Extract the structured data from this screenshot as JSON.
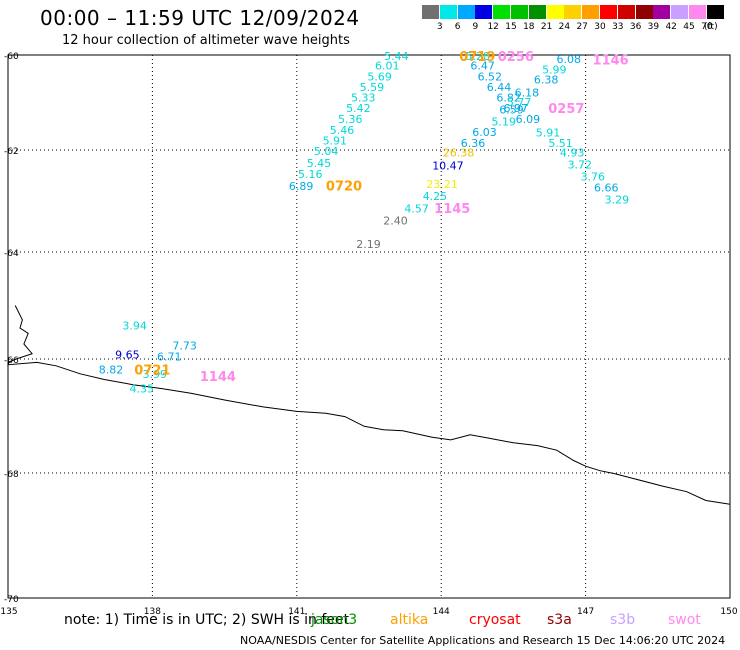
{
  "header": {
    "title": "00:00 – 11:59 UTC 12/09/2024",
    "subtitle": "12 hour collection of altimeter wave heights"
  },
  "legend": {
    "unit": "(ft)",
    "items": [
      {
        "label": "3",
        "color": "#707070"
      },
      {
        "label": "6",
        "color": "#00e8e8"
      },
      {
        "label": "9",
        "color": "#00a8ff"
      },
      {
        "label": "12",
        "color": "#0000e0"
      },
      {
        "label": "15",
        "color": "#00e000"
      },
      {
        "label": "18",
        "color": "#00c000"
      },
      {
        "label": "21",
        "color": "#009000"
      },
      {
        "label": "24",
        "color": "#ffff00"
      },
      {
        "label": "27",
        "color": "#ffd000"
      },
      {
        "label": "30",
        "color": "#ffa000"
      },
      {
        "label": "33",
        "color": "#ff0000"
      },
      {
        "label": "36",
        "color": "#d00000"
      },
      {
        "label": "39",
        "color": "#900000"
      },
      {
        "label": "42",
        "color": "#a000a0"
      },
      {
        "label": "45",
        "color": "#c8a0ff"
      },
      {
        "label": "70",
        "color": "#ff88ee"
      },
      {
        "label": "",
        "color": "#000000"
      }
    ]
  },
  "axes": {
    "lat_labels": [
      "-60",
      "-62",
      "-64",
      "-66",
      "-68",
      "-70"
    ],
    "lon_labels": [
      "135",
      "138",
      "141",
      "144",
      "147",
      "150"
    ]
  },
  "wave_heights": [
    {
      "t": "5.44",
      "lon": 143.07,
      "lat": -60.02,
      "c": "#00d8d8"
    },
    {
      "t": "6.01",
      "lon": 142.88,
      "lat": -60.22,
      "c": "#00d8d8"
    },
    {
      "t": "5.69",
      "lon": 142.72,
      "lat": -60.45,
      "c": "#00d8d8"
    },
    {
      "t": "5.59",
      "lon": 142.56,
      "lat": -60.67,
      "c": "#00d8d8"
    },
    {
      "t": "5.33",
      "lon": 142.38,
      "lat": -60.89,
      "c": "#00d8d8"
    },
    {
      "t": "5.42",
      "lon": 142.28,
      "lat": -61.12,
      "c": "#00d8d8"
    },
    {
      "t": "5.36",
      "lon": 142.11,
      "lat": -61.35,
      "c": "#00d8d8"
    },
    {
      "t": "5.46",
      "lon": 141.94,
      "lat": -61.58,
      "c": "#00d8d8"
    },
    {
      "t": "5.91",
      "lon": 141.79,
      "lat": -61.8,
      "c": "#00d8d8"
    },
    {
      "t": "5.04",
      "lon": 141.61,
      "lat": -62.02,
      "c": "#00d8d8"
    },
    {
      "t": "5.45",
      "lon": 141.46,
      "lat": -62.25,
      "c": "#00d8d8"
    },
    {
      "t": "5.16",
      "lon": 141.28,
      "lat": -62.47,
      "c": "#00d8d8"
    },
    {
      "t": "6.89",
      "lon": 141.09,
      "lat": -62.71,
      "c": "#00a8e8"
    },
    {
      "t": "23.21",
      "lon": 144.02,
      "lat": -62.67,
      "c": "#f0f000"
    },
    {
      "t": "4.25",
      "lon": 143.87,
      "lat": -62.9,
      "c": "#00d8d8"
    },
    {
      "t": "4.57",
      "lon": 143.49,
      "lat": -63.15,
      "c": "#00d8d8"
    },
    {
      "t": "2.40",
      "lon": 143.05,
      "lat": -63.38,
      "c": "#707070"
    },
    {
      "t": "2.19",
      "lon": 142.49,
      "lat": -63.84,
      "c": "#707070"
    },
    {
      "t": "5.28",
      "lon": 144.76,
      "lat": -60.02,
      "c": "#00d8d8"
    },
    {
      "t": "6.47",
      "lon": 144.86,
      "lat": -60.22,
      "c": "#00a8e8"
    },
    {
      "t": "6.52",
      "lon": 145.01,
      "lat": -60.45,
      "c": "#00a8e8"
    },
    {
      "t": "6.44",
      "lon": 145.2,
      "lat": -60.67,
      "c": "#00a8e8"
    },
    {
      "t": "6.18",
      "lon": 145.78,
      "lat": -60.79,
      "c": "#00a8e8"
    },
    {
      "t": "6.82",
      "lon": 145.4,
      "lat": -60.89,
      "c": "#00a8e8"
    },
    {
      "t": "5.77",
      "lon": 145.62,
      "lat": -60.99,
      "c": "#00d8d8"
    },
    {
      "t": "6.97",
      "lon": 145.55,
      "lat": -61.12,
      "c": "#00a8e8"
    },
    {
      "t": "6.59",
      "lon": 145.46,
      "lat": -61.15,
      "c": "#00a8e8"
    },
    {
      "t": "6.09",
      "lon": 145.8,
      "lat": -61.35,
      "c": "#00a8e8"
    },
    {
      "t": "5.19",
      "lon": 145.3,
      "lat": -61.4,
      "c": "#00d8d8"
    },
    {
      "t": "6.03",
      "lon": 144.9,
      "lat": -61.62,
      "c": "#00a8e8"
    },
    {
      "t": "6.36",
      "lon": 144.66,
      "lat": -61.85,
      "c": "#00a8e8"
    },
    {
      "t": "26.38",
      "lon": 144.36,
      "lat": -62.05,
      "c": "#f0c000"
    },
    {
      "t": "10.47",
      "lon": 144.14,
      "lat": -62.3,
      "c": "#0000d0"
    },
    {
      "t": "6.08",
      "lon": 146.65,
      "lat": -60.08,
      "c": "#00a8e8"
    },
    {
      "t": "5.99",
      "lon": 146.35,
      "lat": -60.3,
      "c": "#00d8d8"
    },
    {
      "t": "6.38",
      "lon": 146.18,
      "lat": -60.52,
      "c": "#00a8e8"
    },
    {
      "t": "5.91",
      "lon": 146.22,
      "lat": -61.63,
      "c": "#00d8d8"
    },
    {
      "t": "5.51",
      "lon": 146.48,
      "lat": -61.85,
      "c": "#00d8d8"
    },
    {
      "t": "4.93",
      "lon": 146.72,
      "lat": -62.05,
      "c": "#00d8d8"
    },
    {
      "t": "3.72",
      "lon": 146.88,
      "lat": -62.28,
      "c": "#00d8d8"
    },
    {
      "t": "3.76",
      "lon": 147.15,
      "lat": -62.52,
      "c": "#00d8d8"
    },
    {
      "t": "6.66",
      "lon": 147.43,
      "lat": -62.74,
      "c": "#00a8e8"
    },
    {
      "t": "3.29",
      "lon": 147.65,
      "lat": -62.97,
      "c": "#00d8d8"
    },
    {
      "t": "3.94",
      "lon": 137.63,
      "lat": -65.37,
      "c": "#00d8d8"
    },
    {
      "t": "7.73",
      "lon": 138.67,
      "lat": -65.75,
      "c": "#00a8e8"
    },
    {
      "t": "9.65",
      "lon": 137.48,
      "lat": -65.92,
      "c": "#0000d0"
    },
    {
      "t": "6.71",
      "lon": 138.35,
      "lat": -65.95,
      "c": "#00a8e8"
    },
    {
      "t": "8.82",
      "lon": 137.14,
      "lat": -66.18,
      "c": "#00a8e8"
    },
    {
      "t": "3.99",
      "lon": 138.05,
      "lat": -66.26,
      "c": "#00d8d8"
    },
    {
      "t": "4.35",
      "lon": 137.78,
      "lat": -66.52,
      "c": "#00d8d8"
    }
  ],
  "time_labels": [
    {
      "t": "0719",
      "lon": 144.75,
      "lat": -60.02,
      "c": "#ffa000"
    },
    {
      "t": "0256",
      "lon": 145.55,
      "lat": -60.02,
      "c": "#ff88ee"
    },
    {
      "t": "1146",
      "lon": 147.52,
      "lat": -60.09,
      "c": "#ff88ee"
    },
    {
      "t": "0257",
      "lon": 146.6,
      "lat": -61.12,
      "c": "#ff88ee"
    },
    {
      "t": "0720",
      "lon": 141.98,
      "lat": -62.7,
      "c": "#ffa000"
    },
    {
      "t": "1145",
      "lon": 144.23,
      "lat": -63.14,
      "c": "#ff88ee"
    },
    {
      "t": "0721",
      "lon": 138.0,
      "lat": -66.18,
      "c": "#ffa000"
    },
    {
      "t": "1144",
      "lon": 139.36,
      "lat": -66.3,
      "c": "#ff88ee"
    }
  ],
  "coastline": [
    [
      135.15,
      -65.0
    ],
    [
      135.3,
      -65.27
    ],
    [
      135.25,
      -65.42
    ],
    [
      135.42,
      -65.52
    ],
    [
      135.33,
      -65.72
    ],
    [
      135.5,
      -65.9
    ],
    [
      135.2,
      -65.99
    ],
    [
      135.03,
      -66.05
    ],
    [
      135.0,
      -66.1
    ],
    [
      135.6,
      -66.06
    ],
    [
      136.0,
      -66.12
    ],
    [
      136.5,
      -66.26
    ],
    [
      137.0,
      -66.36
    ],
    [
      137.6,
      -66.45
    ],
    [
      138.2,
      -66.52
    ],
    [
      138.8,
      -66.6
    ],
    [
      139.5,
      -66.72
    ],
    [
      140.3,
      -66.84
    ],
    [
      141.0,
      -66.92
    ],
    [
      141.6,
      -66.95
    ],
    [
      142.0,
      -67.01
    ],
    [
      142.4,
      -67.18
    ],
    [
      142.8,
      -67.24
    ],
    [
      143.2,
      -67.26
    ],
    [
      143.8,
      -67.37
    ],
    [
      144.2,
      -67.42
    ],
    [
      144.6,
      -67.33
    ],
    [
      145.0,
      -67.39
    ],
    [
      145.5,
      -67.47
    ],
    [
      146.0,
      -67.52
    ],
    [
      146.4,
      -67.6
    ],
    [
      146.75,
      -67.78
    ],
    [
      147.0,
      -67.88
    ],
    [
      147.3,
      -67.96
    ],
    [
      147.6,
      -68.01
    ],
    [
      148.0,
      -68.09
    ],
    [
      148.6,
      -68.21
    ],
    [
      149.1,
      -68.3
    ],
    [
      149.5,
      -68.44
    ],
    [
      150.0,
      -68.5
    ]
  ],
  "footer": {
    "note": "note: 1) Time is in UTC; 2) SWH is in feet",
    "satellites": [
      {
        "name": "jason3",
        "color": "#009000"
      },
      {
        "name": "altika",
        "color": "#ffa000"
      },
      {
        "name": "cryosat",
        "color": "#ff0000"
      },
      {
        "name": "s3a",
        "color": "#900000"
      },
      {
        "name": "s3b",
        "color": "#c8a0ff"
      },
      {
        "name": "swot",
        "color": "#ff88ee"
      }
    ],
    "credit": "NOAA/NESDIS Center for Satellite Applications and Research    15 Dec 14:06:20 UTC 2024"
  }
}
